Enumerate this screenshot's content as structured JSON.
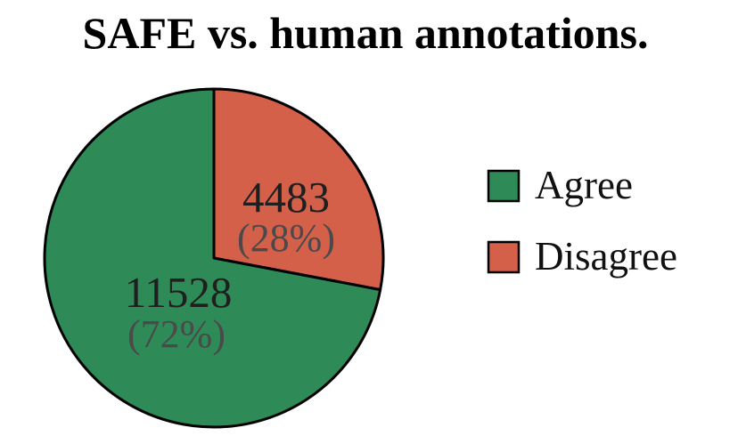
{
  "chart_data": {
    "type": "pie",
    "title": "SAFE vs. human annotations.",
    "slices": [
      {
        "label": "Agree",
        "value": 11528,
        "percent_label": "(72%)",
        "color": "#2e8b57"
      },
      {
        "label": "Disagree",
        "value": 4483,
        "percent_label": "(28%)",
        "color": "#d4604a"
      }
    ],
    "legend_placement": "right"
  }
}
